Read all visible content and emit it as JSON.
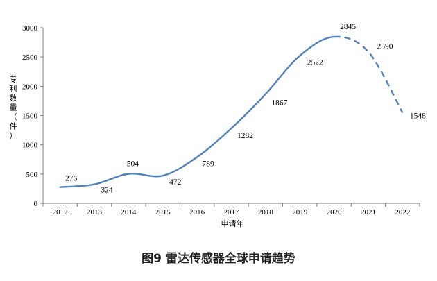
{
  "chart_data": {
    "type": "line",
    "title": "",
    "caption": "图9 雷达传感器全球申请趋势",
    "xlabel": "申请年",
    "ylabel": "专利数量（件）",
    "categories": [
      "2012",
      "2013",
      "2014",
      "2015",
      "2016",
      "2017",
      "2018",
      "2019",
      "2020",
      "2021",
      "2022"
    ],
    "series": [
      {
        "values": [
          276,
          324,
          504,
          472,
          789,
          1282,
          1867,
          2522,
          2845,
          2590,
          1548
        ]
      }
    ],
    "dashed_from": "2020",
    "ylim": [
      0,
      3000
    ],
    "yticks": [
      "0",
      "500",
      "1000",
      "1500",
      "2000",
      "2500",
      "3000"
    ],
    "grid": false,
    "legend": "none",
    "line_color": "#4F81BD"
  }
}
